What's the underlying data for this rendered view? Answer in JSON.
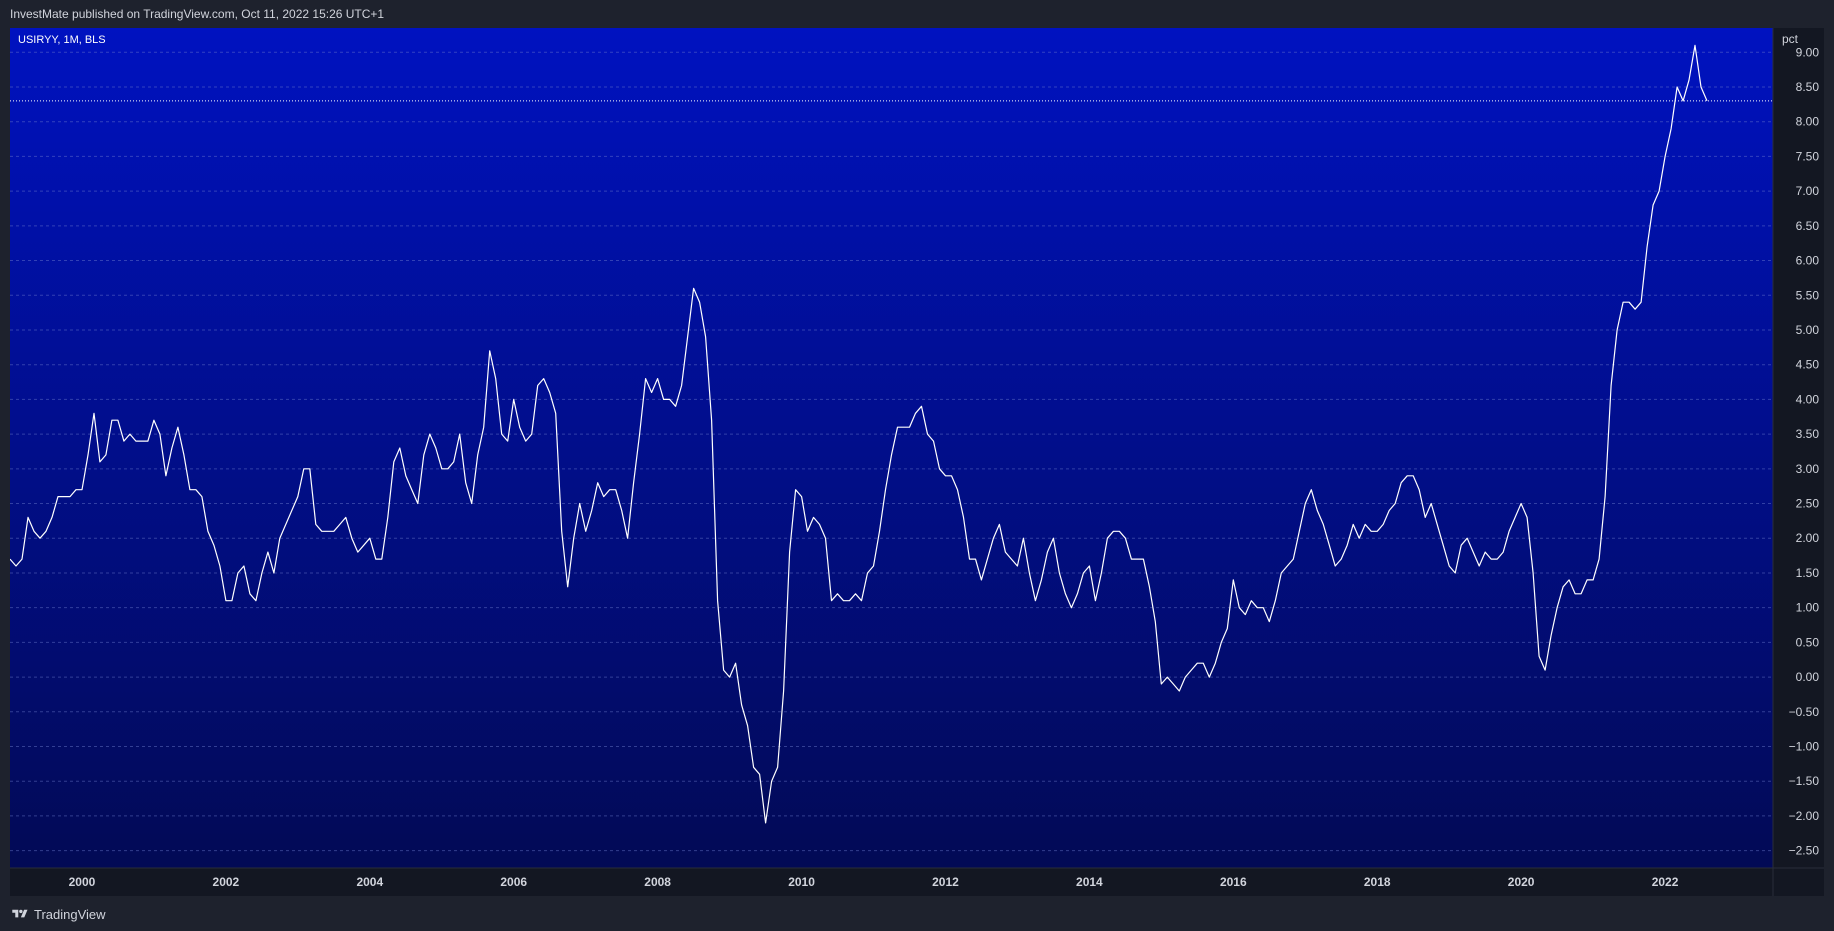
{
  "header": {
    "published_by": "InvestMate published on TradingView.com, Oct 11, 2022 15:26 UTC+1"
  },
  "footer": {
    "brand": "TradingView"
  },
  "colors": {
    "background": "#1e222d",
    "plot_gradient_top": "#0012c0",
    "plot_gradient_bottom": "#020a55",
    "line": "#ffffff",
    "grid": "#6f7fcf"
  },
  "chart_data": {
    "type": "line",
    "legend": "USIRYY, 1M, BLS",
    "unit_label": "pct",
    "x_tick_labels": [
      "2000",
      "2002",
      "2004",
      "2006",
      "2008",
      "2010",
      "2012",
      "2014",
      "2016",
      "2018",
      "2020",
      "2022"
    ],
    "y_tick_labels": [
      "9.00",
      "8.50",
      "8.00",
      "7.50",
      "7.00",
      "6.50",
      "6.00",
      "5.50",
      "5.00",
      "4.50",
      "4.00",
      "3.50",
      "3.00",
      "2.50",
      "2.00",
      "1.50",
      "1.00",
      "0.50",
      "0.00",
      "−0.50",
      "−1.00",
      "−1.50",
      "−2.00",
      "−2.50"
    ],
    "ylim": [
      -2.75,
      9.35
    ],
    "xlim": [
      1999.0,
      2023.5
    ],
    "grid": true,
    "last_value_line": 8.3,
    "series": [
      {
        "start": 1999.0,
        "step": 0.0833333,
        "values": [
          1.7,
          1.6,
          1.7,
          2.3,
          2.1,
          2.0,
          2.1,
          2.3,
          2.6,
          2.6,
          2.6,
          2.7,
          2.7,
          3.2,
          3.8,
          3.1,
          3.2,
          3.7,
          3.7,
          3.4,
          3.5,
          3.4,
          3.4,
          3.4,
          3.7,
          3.5,
          2.9,
          3.3,
          3.6,
          3.2,
          2.7,
          2.7,
          2.6,
          2.1,
          1.9,
          1.6,
          1.1,
          1.1,
          1.5,
          1.6,
          1.2,
          1.1,
          1.5,
          1.8,
          1.5,
          2.0,
          2.2,
          2.4,
          2.6,
          3.0,
          3.0,
          2.2,
          2.1,
          2.1,
          2.1,
          2.2,
          2.3,
          2.0,
          1.8,
          1.9,
          2.0,
          1.7,
          1.7,
          2.3,
          3.1,
          3.3,
          2.9,
          2.7,
          2.5,
          3.2,
          3.5,
          3.3,
          3.0,
          3.0,
          3.1,
          3.5,
          2.8,
          2.5,
          3.2,
          3.6,
          4.7,
          4.3,
          3.5,
          3.4,
          4.0,
          3.6,
          3.4,
          3.5,
          4.2,
          4.3,
          4.1,
          3.8,
          2.1,
          1.3,
          2.0,
          2.5,
          2.1,
          2.4,
          2.8,
          2.6,
          2.7,
          2.7,
          2.4,
          2.0,
          2.8,
          3.5,
          4.3,
          4.1,
          4.3,
          4.0,
          4.0,
          3.9,
          4.2,
          4.9,
          5.6,
          5.4,
          4.9,
          3.7,
          1.1,
          0.1,
          0.0,
          0.2,
          -0.4,
          -0.7,
          -1.3,
          -1.4,
          -2.1,
          -1.5,
          -1.3,
          -0.2,
          1.8,
          2.7,
          2.6,
          2.1,
          2.3,
          2.2,
          2.0,
          1.1,
          1.2,
          1.1,
          1.1,
          1.2,
          1.1,
          1.5,
          1.6,
          2.1,
          2.7,
          3.2,
          3.6,
          3.6,
          3.6,
          3.8,
          3.9,
          3.5,
          3.4,
          3.0,
          2.9,
          2.9,
          2.7,
          2.3,
          1.7,
          1.7,
          1.4,
          1.7,
          2.0,
          2.2,
          1.8,
          1.7,
          1.6,
          2.0,
          1.5,
          1.1,
          1.4,
          1.8,
          2.0,
          1.5,
          1.2,
          1.0,
          1.2,
          1.5,
          1.6,
          1.1,
          1.5,
          2.0,
          2.1,
          2.1,
          2.0,
          1.7,
          1.7,
          1.7,
          1.3,
          0.8,
          -0.1,
          0.0,
          -0.1,
          -0.2,
          0.0,
          0.1,
          0.2,
          0.2,
          0.0,
          0.2,
          0.5,
          0.7,
          1.4,
          1.0,
          0.9,
          1.1,
          1.0,
          1.0,
          0.8,
          1.1,
          1.5,
          1.6,
          1.7,
          2.1,
          2.5,
          2.7,
          2.4,
          2.2,
          1.9,
          1.6,
          1.7,
          1.9,
          2.2,
          2.0,
          2.2,
          2.1,
          2.1,
          2.2,
          2.4,
          2.5,
          2.8,
          2.9,
          2.9,
          2.7,
          2.3,
          2.5,
          2.2,
          1.9,
          1.6,
          1.5,
          1.9,
          2.0,
          1.8,
          1.6,
          1.8,
          1.7,
          1.7,
          1.8,
          2.1,
          2.3,
          2.5,
          2.3,
          1.5,
          0.3,
          0.1,
          0.6,
          1.0,
          1.3,
          1.4,
          1.2,
          1.2,
          1.4,
          1.4,
          1.7,
          2.6,
          4.2,
          5.0,
          5.4,
          5.4,
          5.3,
          5.4,
          6.2,
          6.8,
          7.0,
          7.5,
          7.9,
          8.5,
          8.3,
          8.6,
          9.1,
          8.5,
          8.3
        ]
      }
    ]
  }
}
